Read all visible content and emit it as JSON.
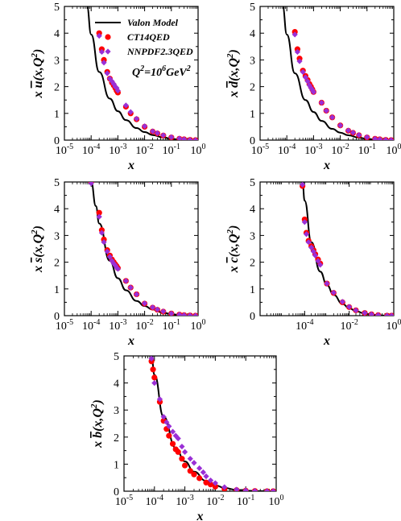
{
  "figure": {
    "legend": {
      "model": "Valon Model",
      "ct14": "CT14QED",
      "nnpdf": "NNPDF2.3QED",
      "scale_base": "Q",
      "scale_exp": "2",
      "scale_eq": "=10",
      "scale_pow": "6",
      "scale_unit": "GeV",
      "scale_unit_exp": "2"
    },
    "colors": {
      "model_line": "#000000",
      "ct14": "#ff0000",
      "nnpdf": "#9a2fd6"
    }
  },
  "chart_data": [
    {
      "type": "scatter",
      "id": "ubar",
      "ylabel": "x ū(x,Q²)",
      "ylabel_parts": {
        "pre": "x ",
        "flav": "u",
        "post": "(x,Q",
        "exp": "2",
        "close": ")"
      },
      "xlabel": "x",
      "xscale": "log",
      "xlim": [
        1e-05,
        1
      ],
      "ylim": [
        0,
        5
      ],
      "xtick_exps": [
        "-5",
        "-4",
        "-3",
        "-2",
        "-1",
        "0"
      ],
      "ytick_labels": [
        "0",
        "1",
        "2",
        "3",
        "4",
        "5"
      ],
      "legend": "top-right",
      "series": [
        {
          "name": "Valon Model",
          "kind": "line",
          "x": [
            7e-05,
            0.0001,
            0.0002,
            0.0005,
            0.001,
            0.002,
            0.005,
            0.01,
            0.02,
            0.05,
            0.1,
            0.2,
            0.5,
            1.0
          ],
          "y": [
            5.0,
            3.95,
            2.55,
            1.55,
            1.08,
            0.75,
            0.45,
            0.3,
            0.19,
            0.1,
            0.05,
            0.02,
            0.005,
            0.0
          ]
        },
        {
          "name": "CT14QED",
          "kind": "circle",
          "x": [
            0.0002,
            0.00025,
            0.0003,
            0.0004,
            0.0005,
            0.0006,
            0.0007,
            0.0008,
            0.0009,
            0.001,
            0.002,
            0.003,
            0.005,
            0.01,
            0.02,
            0.03,
            0.05,
            0.1,
            0.2,
            0.3,
            0.5,
            0.8
          ],
          "y": [
            4.0,
            3.4,
            3.0,
            2.55,
            2.3,
            2.15,
            2.05,
            1.95,
            1.85,
            1.78,
            1.25,
            1.0,
            0.78,
            0.5,
            0.32,
            0.25,
            0.17,
            0.1,
            0.05,
            0.03,
            0.01,
            0.0
          ]
        },
        {
          "name": "NNPDF2.3QED",
          "kind": "diamond",
          "x": [
            0.0002,
            0.00025,
            0.0003,
            0.0004,
            0.0005,
            0.0006,
            0.0007,
            0.0008,
            0.0009,
            0.001,
            0.002,
            0.003,
            0.005,
            0.01,
            0.02,
            0.03,
            0.05,
            0.1,
            0.2,
            0.3,
            0.5,
            0.8
          ],
          "y": [
            3.9,
            3.3,
            2.9,
            2.5,
            2.3,
            2.2,
            2.1,
            2.0,
            1.95,
            1.85,
            1.3,
            1.05,
            0.8,
            0.52,
            0.33,
            0.26,
            0.18,
            0.11,
            0.06,
            0.03,
            0.01,
            0.0
          ]
        }
      ]
    },
    {
      "type": "scatter",
      "id": "dbar",
      "ylabel": "x d̄(x,Q²)",
      "ylabel_parts": {
        "pre": "x ",
        "flav": "d",
        "post": "(x,Q",
        "exp": "2",
        "close": ")"
      },
      "xlabel": "x",
      "xscale": "log",
      "xlim": [
        1e-05,
        1
      ],
      "ylim": [
        0,
        5
      ],
      "xtick_exps": [
        "-5",
        "-4",
        "-3",
        "-2",
        "-1",
        "0"
      ],
      "ytick_labels": [
        "0",
        "1",
        "2",
        "3",
        "4",
        "5"
      ],
      "series": [
        {
          "name": "Valon Model",
          "kind": "line",
          "x": [
            7e-05,
            0.0001,
            0.0002,
            0.0005,
            0.001,
            0.002,
            0.005,
            0.01,
            0.02,
            0.05,
            0.1,
            0.2,
            0.5,
            1.0
          ],
          "y": [
            5.0,
            3.95,
            2.5,
            1.5,
            1.05,
            0.72,
            0.42,
            0.28,
            0.18,
            0.09,
            0.05,
            0.02,
            0.005,
            0.0
          ]
        },
        {
          "name": "CT14QED",
          "kind": "circle",
          "x": [
            0.0002,
            0.00025,
            0.0003,
            0.0004,
            0.0005,
            0.0006,
            0.0007,
            0.0008,
            0.0009,
            0.001,
            0.002,
            0.003,
            0.005,
            0.01,
            0.02,
            0.03,
            0.05,
            0.1,
            0.2,
            0.3,
            0.5,
            0.8
          ],
          "y": [
            4.05,
            3.4,
            3.05,
            2.6,
            2.4,
            2.25,
            2.1,
            2.0,
            1.9,
            1.8,
            1.4,
            1.1,
            0.85,
            0.55,
            0.35,
            0.27,
            0.18,
            0.1,
            0.05,
            0.03,
            0.01,
            0.0
          ]
        },
        {
          "name": "NNPDF2.3QED",
          "kind": "diamond",
          "x": [
            0.0002,
            0.00025,
            0.0003,
            0.0004,
            0.0005,
            0.0006,
            0.0007,
            0.0008,
            0.0009,
            0.001,
            0.002,
            0.003,
            0.005,
            0.01,
            0.02,
            0.03,
            0.05,
            0.1,
            0.2,
            0.3,
            0.5,
            0.8
          ],
          "y": [
            3.95,
            3.3,
            2.95,
            2.55,
            2.35,
            2.2,
            2.05,
            1.95,
            1.88,
            1.8,
            1.4,
            1.1,
            0.85,
            0.55,
            0.36,
            0.28,
            0.19,
            0.11,
            0.05,
            0.03,
            0.01,
            0.0
          ]
        }
      ]
    },
    {
      "type": "scatter",
      "id": "sbar",
      "ylabel": "x s̄(x,Q²)",
      "ylabel_parts": {
        "pre": "x ",
        "flav": "s",
        "post": "(x,Q",
        "exp": "2",
        "close": ")"
      },
      "xlabel": "x",
      "xscale": "log",
      "xlim": [
        1e-05,
        1
      ],
      "ylim": [
        0,
        5
      ],
      "xtick_exps": [
        "-5",
        "-4",
        "-3",
        "-2",
        "-1",
        "0"
      ],
      "ytick_labels": [
        "0",
        "1",
        "2",
        "3",
        "4",
        "5"
      ],
      "series": [
        {
          "name": "Valon Model",
          "kind": "line",
          "x": [
            0.0001,
            0.00015,
            0.0002,
            0.0005,
            0.001,
            0.002,
            0.005,
            0.01,
            0.02,
            0.05,
            0.1,
            0.2,
            0.5,
            1.0
          ],
          "y": [
            5.0,
            4.1,
            3.45,
            2.05,
            1.4,
            0.95,
            0.55,
            0.36,
            0.23,
            0.11,
            0.06,
            0.025,
            0.005,
            0.0
          ]
        },
        {
          "name": "CT14QED",
          "kind": "circle",
          "x": [
            0.0001,
            0.0002,
            0.00025,
            0.0003,
            0.0004,
            0.0005,
            0.0006,
            0.0007,
            0.0008,
            0.0009,
            0.001,
            0.002,
            0.003,
            0.005,
            0.01,
            0.02,
            0.03,
            0.05,
            0.1,
            0.2,
            0.3,
            0.5,
            0.8
          ],
          "y": [
            5.0,
            3.85,
            3.2,
            2.85,
            2.45,
            2.25,
            2.1,
            2.0,
            1.92,
            1.85,
            1.78,
            1.3,
            1.05,
            0.8,
            0.45,
            0.3,
            0.22,
            0.15,
            0.08,
            0.04,
            0.02,
            0.01,
            0.0
          ]
        },
        {
          "name": "NNPDF2.3QED",
          "kind": "diamond",
          "x": [
            0.0001,
            0.0002,
            0.00025,
            0.0003,
            0.0004,
            0.0005,
            0.0006,
            0.0007,
            0.0008,
            0.0009,
            0.001,
            0.002,
            0.003,
            0.005,
            0.01,
            0.02,
            0.03,
            0.05,
            0.1,
            0.2,
            0.3,
            0.5,
            0.8
          ],
          "y": [
            4.95,
            3.7,
            3.1,
            2.75,
            2.4,
            2.2,
            2.05,
            1.95,
            1.88,
            1.8,
            1.75,
            1.3,
            1.05,
            0.8,
            0.46,
            0.31,
            0.23,
            0.16,
            0.08,
            0.04,
            0.02,
            0.01,
            0.0
          ]
        }
      ]
    },
    {
      "type": "scatter",
      "id": "cbar",
      "ylabel": "x c̄(x,Q²)",
      "ylabel_parts": {
        "pre": "x ",
        "flav": "c",
        "post": "(x,Q",
        "exp": "2",
        "close": ")"
      },
      "xlabel": "x",
      "xscale": "log",
      "xlim": [
        1e-06,
        1
      ],
      "ylim": [
        0,
        5
      ],
      "xtick_exps": [
        "-4",
        "-2",
        "0"
      ],
      "xtick_values": [
        0.0001,
        0.01,
        1
      ],
      "ytick_labels": [
        "0",
        "1",
        "2",
        "3",
        "4",
        "5"
      ],
      "series": [
        {
          "name": "Valon Model",
          "kind": "line",
          "x": [
            8e-05,
            0.0001,
            0.0002,
            0.0005,
            0.001,
            0.002,
            0.005,
            0.01,
            0.02,
            0.05,
            0.1,
            0.2,
            0.5,
            1.0
          ],
          "y": [
            5.0,
            4.3,
            2.75,
            1.65,
            1.15,
            0.78,
            0.44,
            0.28,
            0.17,
            0.08,
            0.04,
            0.015,
            0.003,
            0.0
          ]
        },
        {
          "name": "CT14QED",
          "kind": "circle",
          "x": [
            8e-05,
            0.0001,
            0.00012,
            0.00015,
            0.0002,
            0.00025,
            0.0003,
            0.0004,
            0.0005,
            0.001,
            0.002,
            0.005,
            0.01,
            0.02,
            0.05,
            0.1,
            0.2,
            0.5,
            0.8
          ],
          "y": [
            4.85,
            3.6,
            3.1,
            2.8,
            2.6,
            2.45,
            2.3,
            2.1,
            1.95,
            1.2,
            0.85,
            0.5,
            0.32,
            0.2,
            0.1,
            0.05,
            0.02,
            0.0,
            0.0
          ]
        },
        {
          "name": "NNPDF2.3QED",
          "kind": "diamond",
          "x": [
            8e-05,
            0.0001,
            0.00012,
            0.00015,
            0.0002,
            0.00025,
            0.0003,
            0.0004,
            0.0005,
            0.001,
            0.002,
            0.005,
            0.01,
            0.02,
            0.05,
            0.1,
            0.2,
            0.5,
            0.8
          ],
          "y": [
            4.9,
            3.5,
            3.05,
            2.75,
            2.55,
            2.4,
            2.25,
            2.05,
            1.9,
            1.2,
            0.86,
            0.52,
            0.33,
            0.2,
            0.1,
            0.05,
            0.02,
            0.0,
            0.0
          ]
        }
      ]
    },
    {
      "type": "scatter",
      "id": "bbar",
      "ylabel": "x b̄(x,Q²)",
      "ylabel_parts": {
        "pre": "x ",
        "flav": "b",
        "post": "(x,Q",
        "exp": "2",
        "close": ")"
      },
      "xlabel": "x",
      "xscale": "log",
      "xlim": [
        1e-05,
        1
      ],
      "ylim": [
        0,
        5
      ],
      "xtick_exps": [
        "-5",
        "-4",
        "-3",
        "-2",
        "-1",
        "0"
      ],
      "ytick_labels": [
        "0",
        "1",
        "2",
        "3",
        "4",
        "5"
      ],
      "series": [
        {
          "name": "Valon Model",
          "kind": "line",
          "x": [
            8e-05,
            0.0001,
            0.0002,
            0.0005,
            0.001,
            0.002,
            0.005,
            0.01,
            0.02,
            0.05,
            0.1,
            0.2,
            0.5,
            1.0
          ],
          "y": [
            5.0,
            4.3,
            2.75,
            1.6,
            1.1,
            0.72,
            0.38,
            0.22,
            0.12,
            0.05,
            0.02,
            0.008,
            0.002,
            0.0
          ]
        },
        {
          "name": "CT14QED",
          "kind": "circle",
          "x": [
            8e-05,
            9e-05,
            0.0001,
            0.00015,
            0.0002,
            0.00025,
            0.0003,
            0.0004,
            0.0005,
            0.0006,
            0.0008,
            0.001,
            0.0015,
            0.002,
            0.003,
            0.005,
            0.007,
            0.01,
            0.02,
            0.05,
            0.1,
            0.2,
            0.5,
            0.8
          ],
          "y": [
            4.8,
            4.5,
            4.2,
            3.3,
            2.6,
            2.3,
            2.05,
            1.75,
            1.55,
            1.45,
            1.2,
            0.95,
            0.75,
            0.62,
            0.48,
            0.32,
            0.25,
            0.17,
            0.09,
            0.04,
            0.02,
            0.01,
            0.0,
            0.0
          ]
        },
        {
          "name": "NNPDF2.3QED",
          "kind": "diamond",
          "x": [
            8e-05,
            0.0001,
            0.00015,
            0.0002,
            0.00025,
            0.0003,
            0.0004,
            0.0005,
            0.0006,
            0.0008,
            0.001,
            0.0015,
            0.002,
            0.003,
            0.004,
            0.005,
            0.007,
            0.01,
            0.02,
            0.05,
            0.1,
            0.2,
            0.5,
            0.8
          ],
          "y": [
            4.9,
            4.0,
            3.4,
            2.75,
            2.55,
            2.4,
            2.2,
            2.05,
            1.95,
            1.65,
            1.45,
            1.2,
            1.05,
            0.85,
            0.7,
            0.55,
            0.4,
            0.3,
            0.15,
            0.06,
            0.03,
            0.01,
            0.0,
            0.0
          ]
        }
      ]
    }
  ]
}
